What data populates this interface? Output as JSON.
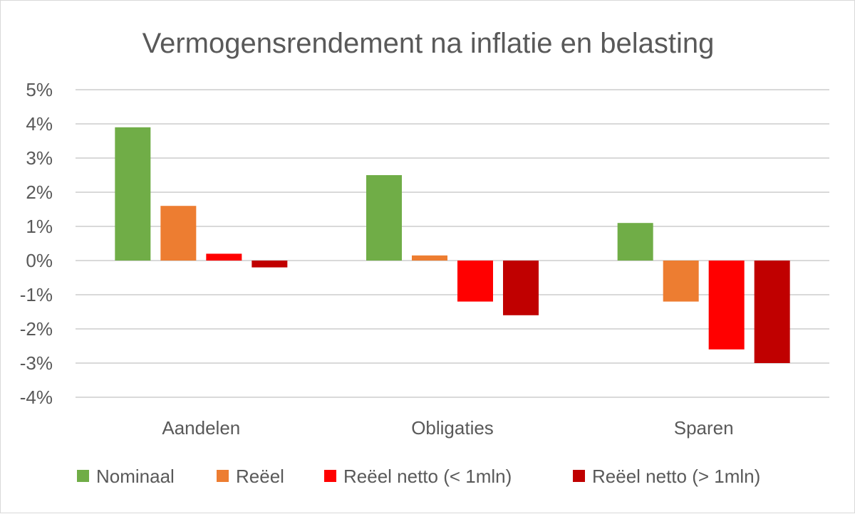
{
  "chart_data": {
    "type": "bar",
    "title": "Vermogensrendement na inflatie en belasting",
    "categories": [
      "Aandelen",
      "Obligaties",
      "Sparen"
    ],
    "series": [
      {
        "name": "Nominaal",
        "color": "#70ad47",
        "values": [
          3.9,
          2.5,
          1.1
        ]
      },
      {
        "name": "Reëel",
        "color": "#ed7d31",
        "values": [
          1.6,
          0.15,
          -1.2
        ]
      },
      {
        "name": "Reëel netto (< 1mln)",
        "color": "#ff0000",
        "values": [
          0.2,
          -1.2,
          -2.6
        ]
      },
      {
        "name": "Reëel netto (> 1mln)",
        "color": "#c00000",
        "values": [
          -0.2,
          -1.6,
          -3.0
        ]
      }
    ],
    "yticks": [
      5,
      4,
      3,
      2,
      1,
      0,
      -1,
      -2,
      -3,
      -4
    ],
    "ytick_labels": [
      "5%",
      "4%",
      "3%",
      "2%",
      "1%",
      "0%",
      "-1%",
      "-2%",
      "-3%",
      "-4%"
    ],
    "ylim": [
      -4,
      5
    ],
    "xlabel": "",
    "ylabel": "",
    "grid": true,
    "legend_position": "bottom"
  }
}
